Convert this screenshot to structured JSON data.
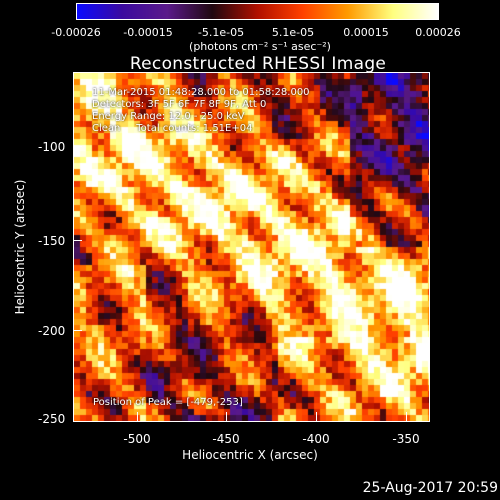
{
  "colorbar": {
    "tick_labels": [
      "-0.00026",
      "-0.00015",
      "-5.1e-05",
      "5.1e-05",
      "0.00015",
      "0.00026"
    ],
    "units": "(photons cm⁻² s⁻¹ asec⁻²)",
    "colors": [
      "#0a0aff",
      "#3b0a9f",
      "#5a1a8a",
      "#200810",
      "#b01000",
      "#ff4000",
      "#ff9a00",
      "#ffff80",
      "#ffffff"
    ]
  },
  "title": "Reconstructed RHESSI Image",
  "info": {
    "time_range": "11-Mar-2015 01:48:28.000 to 01:58:28.000",
    "detectors": "Detectors: 3F 5F 6F 7F 8F 9F, Att 0",
    "energy": "Energy Range: 12.0 - 25.0 keV",
    "clean": "Clean     Total counts: 1.51E+04",
    "peak": "Position of Peak = [-479,-253]"
  },
  "axes": {
    "xlabel": "Heliocentric X (arcsec)",
    "ylabel": "Heliocentric Y (arcsec)",
    "xticks": [
      "-500",
      "-450",
      "-400",
      "-350"
    ],
    "yticks": [
      "-100",
      "-150",
      "-200",
      "-250"
    ],
    "xlim": [
      -530,
      -333
    ],
    "ylim": [
      -253,
      -61
    ]
  },
  "timestamp": "25-Aug-2017 20:59"
}
